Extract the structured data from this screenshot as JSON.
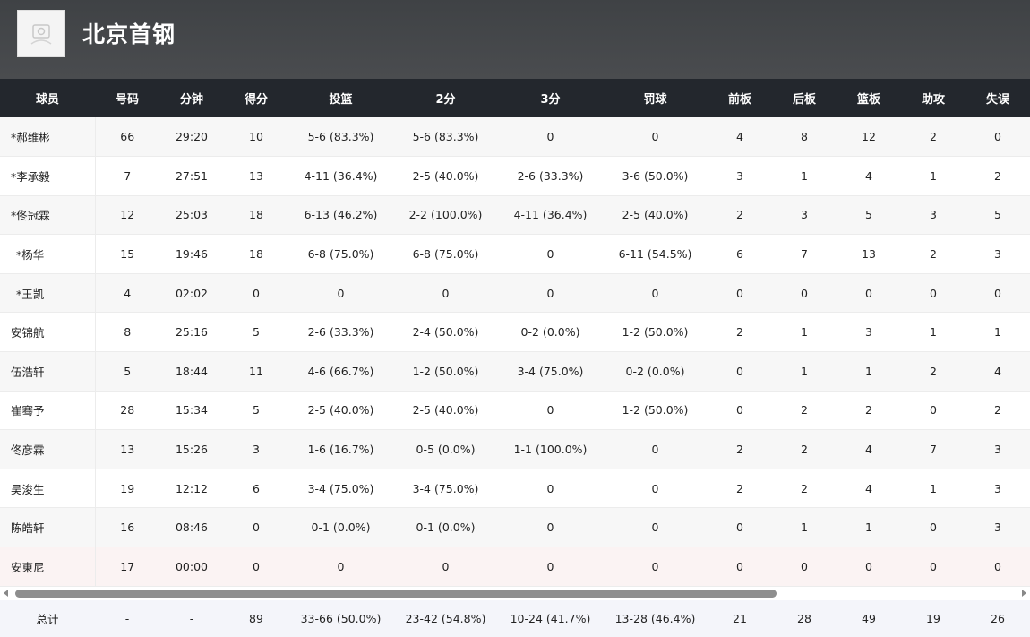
{
  "team": {
    "name": "北京首钢",
    "logo_icon": "team-logo-icon"
  },
  "table": {
    "columns": [
      "球员",
      "号码",
      "分钟",
      "得分",
      "投篮",
      "2分",
      "3分",
      "罚球",
      "前板",
      "后板",
      "篮板",
      "助攻",
      "失误"
    ],
    "rows": [
      [
        "*郝维彬",
        "66",
        "29:20",
        "10",
        "5-6 (83.3%)",
        "5-6 (83.3%)",
        "0",
        "0",
        "4",
        "8",
        "12",
        "2",
        "0"
      ],
      [
        "*李承毅",
        "7",
        "27:51",
        "13",
        "4-11 (36.4%)",
        "2-5 (40.0%)",
        "2-6 (33.3%)",
        "3-6 (50.0%)",
        "3",
        "1",
        "4",
        "1",
        "2"
      ],
      [
        "*佟冠霖",
        "12",
        "25:03",
        "18",
        "6-13 (46.2%)",
        "2-2 (100.0%)",
        "4-11 (36.4%)",
        "2-5 (40.0%)",
        "2",
        "3",
        "5",
        "3",
        "5"
      ],
      [
        "*杨华",
        "15",
        "19:46",
        "18",
        "6-8 (75.0%)",
        "6-8 (75.0%)",
        "0",
        "6-11 (54.5%)",
        "6",
        "7",
        "13",
        "2",
        "3"
      ],
      [
        "*王凯",
        "4",
        "02:02",
        "0",
        "0",
        "0",
        "0",
        "0",
        "0",
        "0",
        "0",
        "0",
        "0"
      ],
      [
        "安锦航",
        "8",
        "25:16",
        "5",
        "2-6 (33.3%)",
        "2-4 (50.0%)",
        "0-2 (0.0%)",
        "1-2 (50.0%)",
        "2",
        "1",
        "3",
        "1",
        "1"
      ],
      [
        "伍浩轩",
        "5",
        "18:44",
        "11",
        "4-6 (66.7%)",
        "1-2 (50.0%)",
        "3-4 (75.0%)",
        "0-2 (0.0%)",
        "0",
        "1",
        "1",
        "2",
        "4"
      ],
      [
        "崔骞予",
        "28",
        "15:34",
        "5",
        "2-5 (40.0%)",
        "2-5 (40.0%)",
        "0",
        "1-2 (50.0%)",
        "0",
        "2",
        "2",
        "0",
        "2"
      ],
      [
        "佟彦霖",
        "13",
        "15:26",
        "3",
        "1-6 (16.7%)",
        "0-5 (0.0%)",
        "1-1 (100.0%)",
        "0",
        "2",
        "2",
        "4",
        "7",
        "3"
      ],
      [
        "吴浚生",
        "19",
        "12:12",
        "6",
        "3-4 (75.0%)",
        "3-4 (75.0%)",
        "0",
        "0",
        "2",
        "2",
        "4",
        "1",
        "3"
      ],
      [
        "陈皓轩",
        "16",
        "08:46",
        "0",
        "0-1 (0.0%)",
        "0-1 (0.0%)",
        "0",
        "0",
        "0",
        "1",
        "1",
        "0",
        "3"
      ],
      [
        "安東尼",
        "17",
        "00:00",
        "0",
        "0",
        "0",
        "0",
        "0",
        "0",
        "0",
        "0",
        "0",
        "0"
      ]
    ]
  },
  "totals": [
    "总计",
    "-",
    "-",
    "89",
    "33-66 (50.0%)",
    "23-42 (54.8%)",
    "10-24 (41.7%)",
    "13-28 (46.4%)",
    "21",
    "28",
    "49",
    "19",
    "26"
  ]
}
